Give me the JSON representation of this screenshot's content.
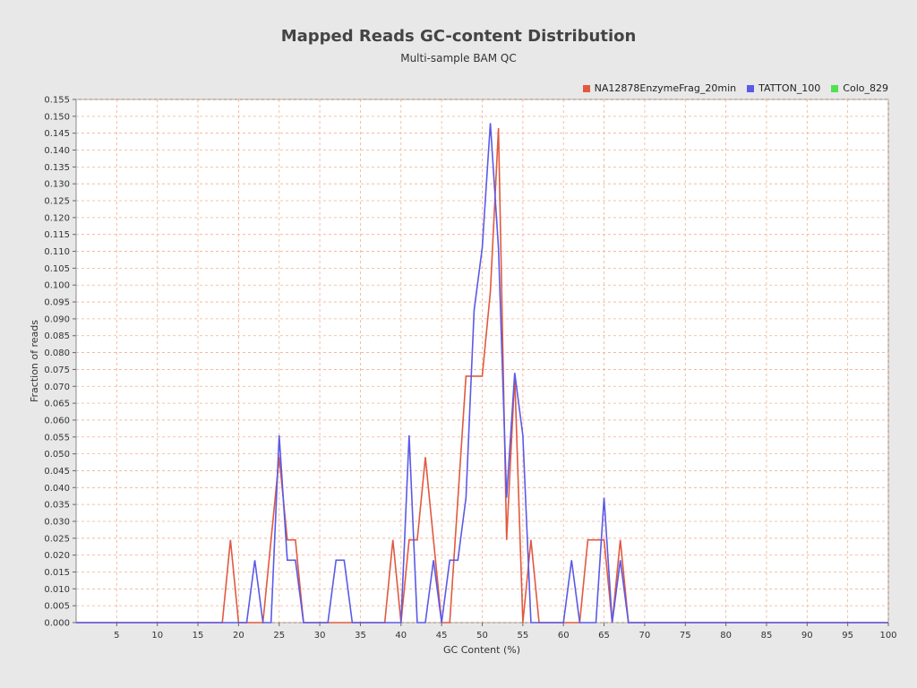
{
  "chart_data": {
    "type": "line",
    "title": "Mapped Reads GC-content Distribution",
    "subtitle": "Multi-sample BAM QC",
    "xlabel": "GC Content (%)",
    "ylabel": "Fraction of reads",
    "xlim": [
      0,
      100
    ],
    "ylim": [
      0,
      0.155
    ],
    "x_ticks": [
      5,
      10,
      15,
      20,
      25,
      30,
      35,
      40,
      45,
      50,
      55,
      60,
      65,
      70,
      75,
      80,
      85,
      90,
      95,
      100
    ],
    "y_ticks": [
      0.0,
      0.005,
      0.01,
      0.015,
      0.02,
      0.025,
      0.03,
      0.035,
      0.04,
      0.045,
      0.05,
      0.055,
      0.06,
      0.065,
      0.07,
      0.075,
      0.08,
      0.085,
      0.09,
      0.095,
      0.1,
      0.105,
      0.11,
      0.115,
      0.12,
      0.125,
      0.13,
      0.135,
      0.14,
      0.145,
      0.15,
      0.155
    ],
    "grid": true,
    "legend_position": "top-right",
    "colors": {
      "background": "#ffffff",
      "grid": "#f0b090",
      "axis": "#888888"
    },
    "series": [
      {
        "name": "NA12878EnzymeFrag_20min",
        "color": "#e05a40",
        "x": [
          0,
          18,
          19,
          20,
          23,
          25,
          26,
          27,
          28,
          38,
          39,
          40,
          41,
          42,
          43,
          45,
          46,
          48,
          49,
          50,
          51,
          52,
          53,
          54,
          55,
          56,
          57,
          62,
          63,
          64,
          65,
          66,
          67,
          68,
          100
        ],
        "y": [
          0,
          0,
          0.0245,
          0,
          0,
          0.049,
          0.0245,
          0.0245,
          0,
          0,
          0.0245,
          0,
          0.0245,
          0.0245,
          0.049,
          0,
          0,
          0.073,
          0.073,
          0.073,
          0.098,
          0.1465,
          0.0245,
          0.073,
          0,
          0.0245,
          0,
          0,
          0.0245,
          0.0245,
          0.0245,
          0,
          0.0245,
          0,
          0
        ]
      },
      {
        "name": "TATTON_100",
        "color": "#5a5ae8",
        "x": [
          0,
          21,
          22,
          23,
          24,
          25,
          26,
          27,
          28,
          31,
          32,
          33,
          34,
          40,
          41,
          42,
          43,
          44,
          45,
          46,
          47,
          48,
          49,
          50,
          51,
          52,
          53,
          54,
          55,
          56,
          60,
          61,
          62,
          64,
          65,
          66,
          67,
          68,
          100
        ],
        "y": [
          0,
          0,
          0.0185,
          0,
          0,
          0.0555,
          0.0185,
          0.0185,
          0,
          0,
          0.0185,
          0.0185,
          0,
          0,
          0.0555,
          0,
          0,
          0.0185,
          0,
          0.0185,
          0.0185,
          0.037,
          0.0925,
          0.111,
          0.148,
          0.111,
          0.037,
          0.074,
          0.0555,
          0,
          0,
          0.0185,
          0,
          0,
          0.037,
          0,
          0.0185,
          0,
          0
        ]
      },
      {
        "name": "Colo_829",
        "color": "#50e050",
        "x": [],
        "y": []
      }
    ]
  }
}
